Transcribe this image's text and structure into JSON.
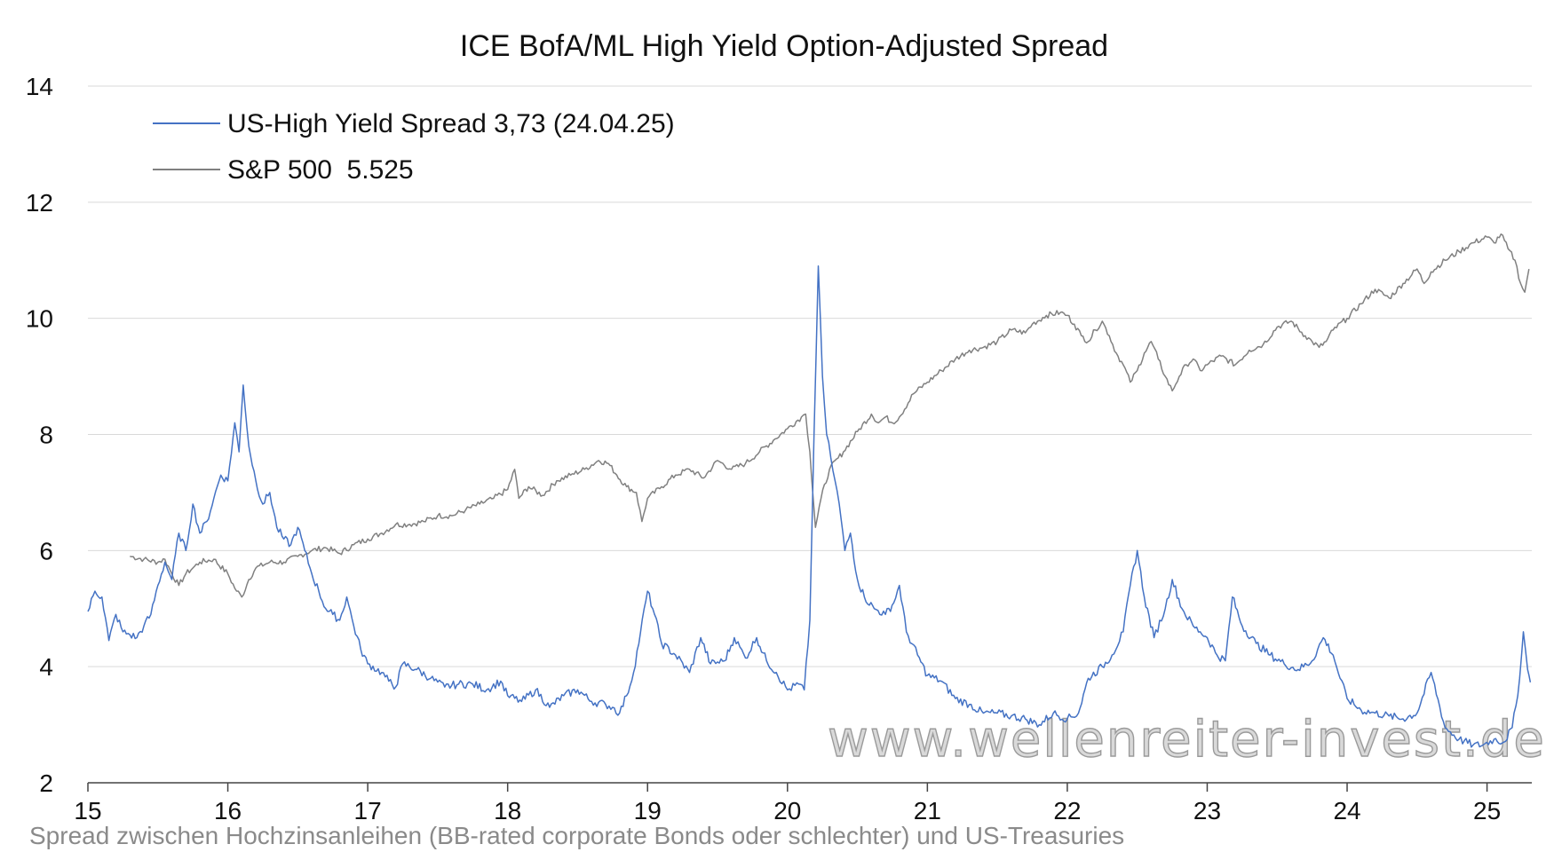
{
  "chart_data": {
    "type": "line",
    "title": "ICE BofA/ML High Yield Option-Adjusted Spread",
    "xlabel": "",
    "ylabel": "",
    "xlim": [
      2015.0,
      2025.32
    ],
    "ylim": [
      2,
      14
    ],
    "y_ticks": [
      2,
      4,
      6,
      8,
      10,
      12,
      14
    ],
    "x_ticks": [
      {
        "v": 2015,
        "label": "15"
      },
      {
        "v": 2016,
        "label": "16"
      },
      {
        "v": 2017,
        "label": "17"
      },
      {
        "v": 2018,
        "label": "18"
      },
      {
        "v": 2019,
        "label": "19"
      },
      {
        "v": 2020,
        "label": "20"
      },
      {
        "v": 2021,
        "label": "21"
      },
      {
        "v": 2022,
        "label": "22"
      },
      {
        "v": 2023,
        "label": "23"
      },
      {
        "v": 2024,
        "label": "24"
      },
      {
        "v": 2025,
        "label": "25"
      }
    ],
    "grid": "horizontal",
    "legend": "top-left",
    "caption": "Spread zwischen Hochzinsanleihen (BB-rated corporate Bonds oder schlechter) und US-Treasuries",
    "watermark": "www.wellenreiter-invest.de",
    "series": [
      {
        "name": "US-High Yield Spread 3,73 (24.04.25)",
        "color": "#4472c4",
        "points": [
          [
            2015.0,
            4.95
          ],
          [
            2015.05,
            5.3
          ],
          [
            2015.1,
            5.2
          ],
          [
            2015.15,
            4.45
          ],
          [
            2015.2,
            4.9
          ],
          [
            2015.25,
            4.6
          ],
          [
            2015.3,
            4.55
          ],
          [
            2015.35,
            4.5
          ],
          [
            2015.4,
            4.7
          ],
          [
            2015.45,
            4.9
          ],
          [
            2015.5,
            5.4
          ],
          [
            2015.55,
            5.8
          ],
          [
            2015.6,
            5.5
          ],
          [
            2015.65,
            6.3
          ],
          [
            2015.7,
            6.0
          ],
          [
            2015.75,
            6.8
          ],
          [
            2015.8,
            6.3
          ],
          [
            2015.85,
            6.5
          ],
          [
            2015.9,
            6.9
          ],
          [
            2015.95,
            7.3
          ],
          [
            2016.0,
            7.2
          ],
          [
            2016.05,
            8.2
          ],
          [
            2016.08,
            7.7
          ],
          [
            2016.11,
            8.85
          ],
          [
            2016.15,
            7.8
          ],
          [
            2016.2,
            7.2
          ],
          [
            2016.25,
            6.8
          ],
          [
            2016.3,
            7.0
          ],
          [
            2016.35,
            6.4
          ],
          [
            2016.4,
            6.2
          ],
          [
            2016.45,
            6.1
          ],
          [
            2016.5,
            6.4
          ],
          [
            2016.55,
            6.0
          ],
          [
            2016.6,
            5.6
          ],
          [
            2016.65,
            5.3
          ],
          [
            2016.7,
            5.0
          ],
          [
            2016.75,
            4.9
          ],
          [
            2016.8,
            4.8
          ],
          [
            2016.85,
            5.2
          ],
          [
            2016.9,
            4.7
          ],
          [
            2016.95,
            4.3
          ],
          [
            2017.0,
            4.05
          ],
          [
            2017.1,
            3.9
          ],
          [
            2017.15,
            3.75
          ],
          [
            2017.2,
            3.65
          ],
          [
            2017.25,
            4.05
          ],
          [
            2017.35,
            3.95
          ],
          [
            2017.45,
            3.8
          ],
          [
            2017.55,
            3.65
          ],
          [
            2017.65,
            3.7
          ],
          [
            2017.75,
            3.7
          ],
          [
            2017.85,
            3.6
          ],
          [
            2017.95,
            3.75
          ],
          [
            2018.0,
            3.5
          ],
          [
            2018.1,
            3.4
          ],
          [
            2018.2,
            3.6
          ],
          [
            2018.3,
            3.3
          ],
          [
            2018.4,
            3.5
          ],
          [
            2018.5,
            3.6
          ],
          [
            2018.6,
            3.4
          ],
          [
            2018.7,
            3.35
          ],
          [
            2018.75,
            3.3
          ],
          [
            2018.8,
            3.2
          ],
          [
            2018.85,
            3.5
          ],
          [
            2018.9,
            3.9
          ],
          [
            2018.95,
            4.6
          ],
          [
            2019.0,
            5.3
          ],
          [
            2019.05,
            4.9
          ],
          [
            2019.1,
            4.4
          ],
          [
            2019.2,
            4.2
          ],
          [
            2019.3,
            3.9
          ],
          [
            2019.38,
            4.5
          ],
          [
            2019.45,
            4.05
          ],
          [
            2019.55,
            4.1
          ],
          [
            2019.62,
            4.5
          ],
          [
            2019.7,
            4.15
          ],
          [
            2019.78,
            4.5
          ],
          [
            2019.85,
            4.1
          ],
          [
            2019.92,
            3.9
          ],
          [
            2020.0,
            3.6
          ],
          [
            2020.08,
            3.7
          ],
          [
            2020.12,
            3.6
          ],
          [
            2020.16,
            4.8
          ],
          [
            2020.19,
            8.0
          ],
          [
            2020.22,
            10.9
          ],
          [
            2020.25,
            9.0
          ],
          [
            2020.28,
            8.0
          ],
          [
            2020.31,
            7.6
          ],
          [
            2020.34,
            7.2
          ],
          [
            2020.37,
            6.8
          ],
          [
            2020.41,
            6.0
          ],
          [
            2020.45,
            6.3
          ],
          [
            2020.5,
            5.5
          ],
          [
            2020.55,
            5.2
          ],
          [
            2020.62,
            5.0
          ],
          [
            2020.7,
            4.9
          ],
          [
            2020.76,
            5.1
          ],
          [
            2020.8,
            5.4
          ],
          [
            2020.85,
            4.6
          ],
          [
            2020.93,
            4.2
          ],
          [
            2021.0,
            3.85
          ],
          [
            2021.1,
            3.75
          ],
          [
            2021.2,
            3.45
          ],
          [
            2021.3,
            3.35
          ],
          [
            2021.4,
            3.2
          ],
          [
            2021.5,
            3.2
          ],
          [
            2021.6,
            3.15
          ],
          [
            2021.7,
            3.1
          ],
          [
            2021.8,
            3.0
          ],
          [
            2021.9,
            3.2
          ],
          [
            2022.0,
            3.1
          ],
          [
            2022.08,
            3.2
          ],
          [
            2022.15,
            3.8
          ],
          [
            2022.25,
            4.0
          ],
          [
            2022.32,
            4.2
          ],
          [
            2022.4,
            4.6
          ],
          [
            2022.45,
            5.4
          ],
          [
            2022.5,
            6.0
          ],
          [
            2022.55,
            5.2
          ],
          [
            2022.62,
            4.5
          ],
          [
            2022.7,
            5.0
          ],
          [
            2022.75,
            5.5
          ],
          [
            2022.82,
            5.0
          ],
          [
            2022.9,
            4.7
          ],
          [
            2022.95,
            4.6
          ],
          [
            2023.0,
            4.5
          ],
          [
            2023.07,
            4.2
          ],
          [
            2023.13,
            4.1
          ],
          [
            2023.18,
            5.2
          ],
          [
            2023.25,
            4.7
          ],
          [
            2023.35,
            4.4
          ],
          [
            2023.45,
            4.2
          ],
          [
            2023.55,
            4.05
          ],
          [
            2023.65,
            3.95
          ],
          [
            2023.75,
            4.1
          ],
          [
            2023.83,
            4.5
          ],
          [
            2023.9,
            4.2
          ],
          [
            2023.95,
            3.8
          ],
          [
            2024.0,
            3.45
          ],
          [
            2024.1,
            3.25
          ],
          [
            2024.2,
            3.2
          ],
          [
            2024.3,
            3.15
          ],
          [
            2024.4,
            3.1
          ],
          [
            2024.5,
            3.2
          ],
          [
            2024.6,
            3.9
          ],
          [
            2024.7,
            2.95
          ],
          [
            2024.8,
            2.75
          ],
          [
            2024.9,
            2.65
          ],
          [
            2024.97,
            2.65
          ],
          [
            2025.05,
            2.75
          ],
          [
            2025.12,
            2.7
          ],
          [
            2025.18,
            2.95
          ],
          [
            2025.22,
            3.5
          ],
          [
            2025.26,
            4.6
          ],
          [
            2025.29,
            3.95
          ],
          [
            2025.31,
            3.73
          ]
        ]
      },
      {
        "name": "S&P 500  5.525",
        "color": "#808080",
        "points": [
          [
            2015.3,
            5.9
          ],
          [
            2015.4,
            5.85
          ],
          [
            2015.5,
            5.8
          ],
          [
            2015.55,
            5.85
          ],
          [
            2015.6,
            5.6
          ],
          [
            2015.65,
            5.4
          ],
          [
            2015.7,
            5.6
          ],
          [
            2015.75,
            5.7
          ],
          [
            2015.8,
            5.8
          ],
          [
            2015.9,
            5.85
          ],
          [
            2016.0,
            5.6
          ],
          [
            2016.05,
            5.35
          ],
          [
            2016.1,
            5.2
          ],
          [
            2016.15,
            5.5
          ],
          [
            2016.2,
            5.7
          ],
          [
            2016.3,
            5.8
          ],
          [
            2016.4,
            5.8
          ],
          [
            2016.5,
            5.9
          ],
          [
            2016.6,
            6.0
          ],
          [
            2016.7,
            6.05
          ],
          [
            2016.8,
            5.95
          ],
          [
            2016.9,
            6.1
          ],
          [
            2017.0,
            6.2
          ],
          [
            2017.1,
            6.3
          ],
          [
            2017.2,
            6.45
          ],
          [
            2017.3,
            6.45
          ],
          [
            2017.4,
            6.5
          ],
          [
            2017.5,
            6.6
          ],
          [
            2017.6,
            6.6
          ],
          [
            2017.7,
            6.7
          ],
          [
            2017.8,
            6.8
          ],
          [
            2017.9,
            6.9
          ],
          [
            2018.0,
            7.05
          ],
          [
            2018.05,
            7.4
          ],
          [
            2018.08,
            6.9
          ],
          [
            2018.15,
            7.1
          ],
          [
            2018.25,
            6.95
          ],
          [
            2018.35,
            7.2
          ],
          [
            2018.45,
            7.3
          ],
          [
            2018.55,
            7.4
          ],
          [
            2018.65,
            7.55
          ],
          [
            2018.72,
            7.5
          ],
          [
            2018.78,
            7.3
          ],
          [
            2018.85,
            7.1
          ],
          [
            2018.92,
            7.0
          ],
          [
            2018.96,
            6.5
          ],
          [
            2019.0,
            6.9
          ],
          [
            2019.1,
            7.1
          ],
          [
            2019.2,
            7.3
          ],
          [
            2019.3,
            7.4
          ],
          [
            2019.4,
            7.25
          ],
          [
            2019.5,
            7.55
          ],
          [
            2019.6,
            7.4
          ],
          [
            2019.7,
            7.5
          ],
          [
            2019.8,
            7.7
          ],
          [
            2019.9,
            7.9
          ],
          [
            2020.0,
            8.1
          ],
          [
            2020.1,
            8.3
          ],
          [
            2020.13,
            8.35
          ],
          [
            2020.16,
            7.7
          ],
          [
            2020.2,
            6.4
          ],
          [
            2020.24,
            6.9
          ],
          [
            2020.3,
            7.4
          ],
          [
            2020.4,
            7.7
          ],
          [
            2020.5,
            8.05
          ],
          [
            2020.6,
            8.35
          ],
          [
            2020.65,
            8.2
          ],
          [
            2020.7,
            8.3
          ],
          [
            2020.75,
            8.2
          ],
          [
            2020.8,
            8.3
          ],
          [
            2020.9,
            8.7
          ],
          [
            2021.0,
            8.9
          ],
          [
            2021.1,
            9.1
          ],
          [
            2021.2,
            9.3
          ],
          [
            2021.3,
            9.45
          ],
          [
            2021.4,
            9.5
          ],
          [
            2021.5,
            9.6
          ],
          [
            2021.6,
            9.8
          ],
          [
            2021.7,
            9.75
          ],
          [
            2021.75,
            9.9
          ],
          [
            2021.85,
            10.05
          ],
          [
            2021.95,
            10.1
          ],
          [
            2022.0,
            10.05
          ],
          [
            2022.05,
            9.9
          ],
          [
            2022.1,
            9.7
          ],
          [
            2022.15,
            9.6
          ],
          [
            2022.2,
            9.8
          ],
          [
            2022.25,
            9.95
          ],
          [
            2022.3,
            9.7
          ],
          [
            2022.35,
            9.4
          ],
          [
            2022.4,
            9.2
          ],
          [
            2022.45,
            8.9
          ],
          [
            2022.5,
            9.1
          ],
          [
            2022.55,
            9.4
          ],
          [
            2022.6,
            9.6
          ],
          [
            2022.65,
            9.3
          ],
          [
            2022.7,
            9.0
          ],
          [
            2022.75,
            8.75
          ],
          [
            2022.8,
            9.0
          ],
          [
            2022.85,
            9.2
          ],
          [
            2022.9,
            9.3
          ],
          [
            2022.95,
            9.1
          ],
          [
            2023.0,
            9.2
          ],
          [
            2023.1,
            9.35
          ],
          [
            2023.2,
            9.2
          ],
          [
            2023.3,
            9.45
          ],
          [
            2023.4,
            9.55
          ],
          [
            2023.5,
            9.85
          ],
          [
            2023.6,
            9.95
          ],
          [
            2023.7,
            9.7
          ],
          [
            2023.75,
            9.6
          ],
          [
            2023.8,
            9.5
          ],
          [
            2023.85,
            9.6
          ],
          [
            2023.9,
            9.8
          ],
          [
            2024.0,
            10.0
          ],
          [
            2024.1,
            10.25
          ],
          [
            2024.2,
            10.5
          ],
          [
            2024.3,
            10.35
          ],
          [
            2024.4,
            10.6
          ],
          [
            2024.5,
            10.85
          ],
          [
            2024.55,
            10.6
          ],
          [
            2024.6,
            10.8
          ],
          [
            2024.7,
            11.0
          ],
          [
            2024.8,
            11.15
          ],
          [
            2024.9,
            11.3
          ],
          [
            2025.0,
            11.4
          ],
          [
            2025.05,
            11.3
          ],
          [
            2025.1,
            11.45
          ],
          [
            2025.15,
            11.2
          ],
          [
            2025.2,
            11.0
          ],
          [
            2025.24,
            10.6
          ],
          [
            2025.27,
            10.45
          ],
          [
            2025.3,
            10.85
          ]
        ]
      }
    ]
  }
}
